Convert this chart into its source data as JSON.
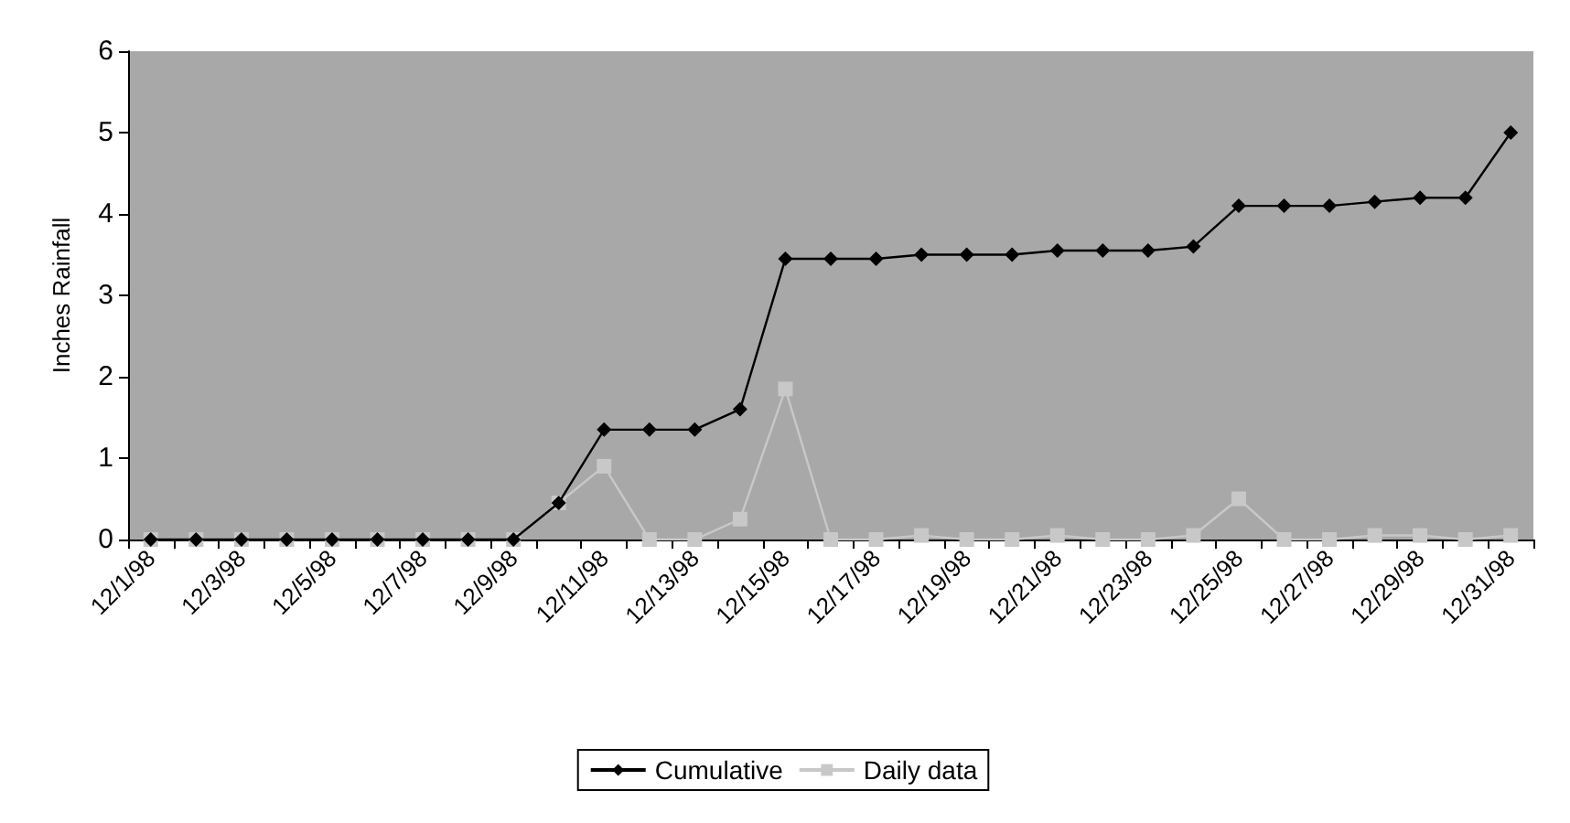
{
  "chart_data": {
    "type": "line",
    "ylabel": "Inches Rainfall",
    "categories": [
      "12/1/98",
      null,
      "12/3/98",
      null,
      "12/5/98",
      null,
      "12/7/98",
      null,
      "12/9/98",
      null,
      "12/11/98",
      null,
      "12/13/98",
      null,
      "12/15/98",
      null,
      "12/17/98",
      null,
      "12/19/98",
      null,
      "12/21/98",
      null,
      "12/23/98",
      null,
      "12/25/98",
      null,
      "12/27/98",
      null,
      "12/29/98",
      null,
      "12/31/98"
    ],
    "series": [
      {
        "name": "Cumulative",
        "color": "#000000",
        "marker": "diamond",
        "values": [
          0,
          0,
          0,
          0,
          0,
          0,
          0,
          0,
          0,
          0.45,
          1.35,
          1.35,
          1.35,
          1.6,
          3.45,
          3.45,
          3.45,
          3.5,
          3.5,
          3.5,
          3.55,
          3.55,
          3.55,
          3.6,
          4.1,
          4.1,
          4.1,
          4.15,
          4.2,
          4.2,
          5.0
        ]
      },
      {
        "name": "Daily data",
        "color": "#c8c8c8",
        "marker": "square",
        "values": [
          0,
          0,
          0,
          0,
          0,
          0,
          0,
          0,
          0,
          0.45,
          0.9,
          0,
          0,
          0.25,
          1.85,
          0,
          0,
          0.05,
          0,
          0,
          0.05,
          0,
          0,
          0.05,
          0.5,
          0,
          0,
          0.05,
          0.05,
          0,
          0.05
        ]
      }
    ],
    "ylim": [
      0,
      6
    ],
    "yticks": [
      0,
      1,
      2,
      3,
      4,
      5,
      6
    ],
    "grid": false,
    "legend": "bottom"
  }
}
